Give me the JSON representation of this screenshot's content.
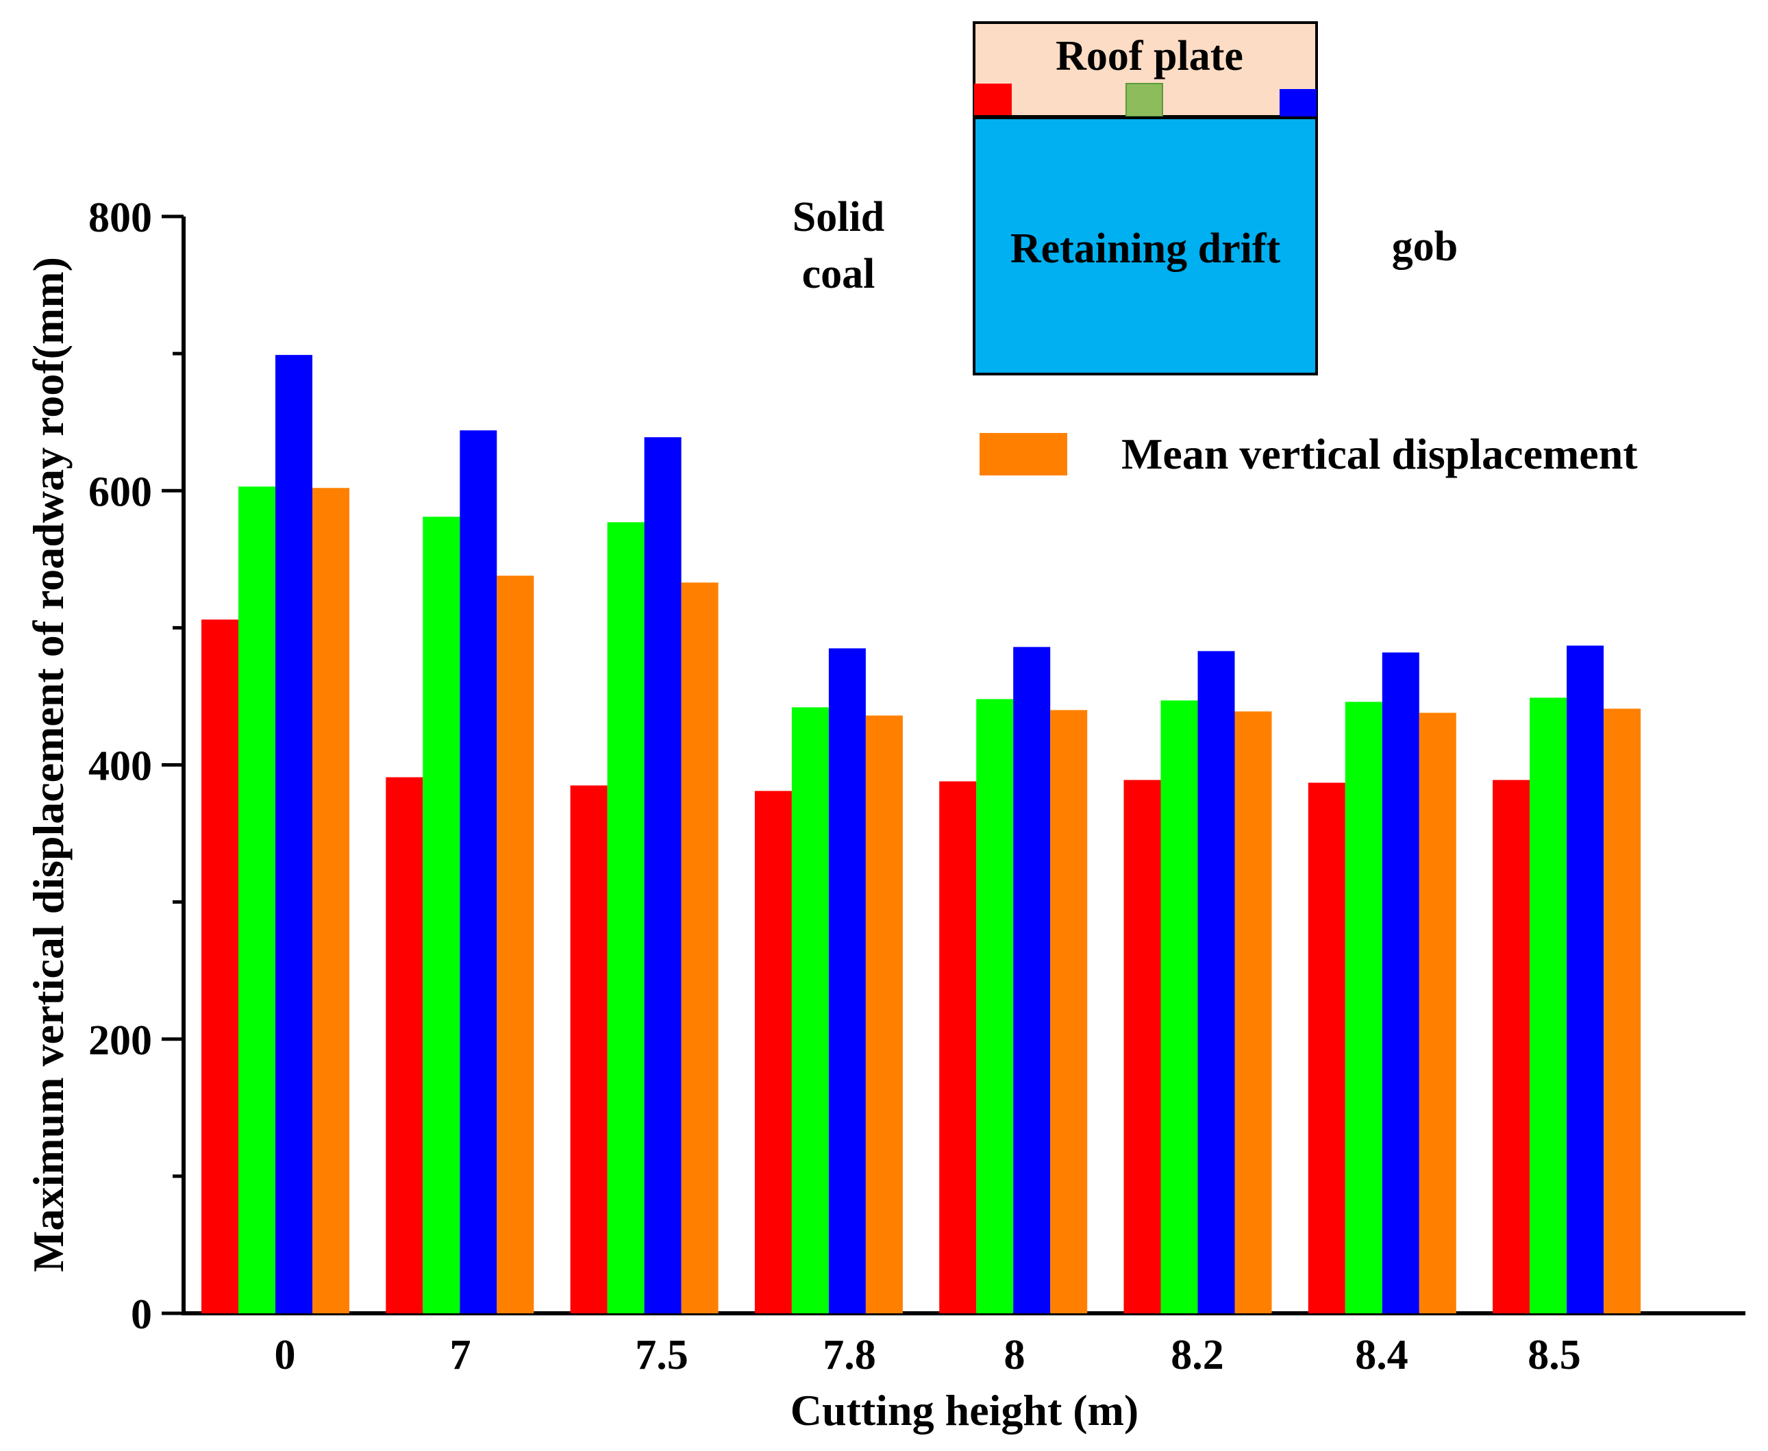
{
  "chart_data": {
    "type": "bar",
    "title": "",
    "xlabel": "Cutting height (m)",
    "ylabel": "Maximum vertical displacement of roadway roof(mm)",
    "categories": [
      "0",
      "7",
      "7.5",
      "7.8",
      "8",
      "8.2",
      "8.4",
      "8.5"
    ],
    "ylim": [
      0,
      800
    ],
    "yticks": [
      "0",
      "200",
      "400",
      "600",
      "800"
    ],
    "grid": false,
    "series": [
      {
        "color": "#ff0000",
        "values": [
          506,
          391,
          385,
          381,
          388,
          389,
          387,
          389
        ]
      },
      {
        "color": "#00ff00",
        "values": [
          603,
          581,
          577,
          442,
          448,
          447,
          446,
          449
        ]
      },
      {
        "color": "#0000ff",
        "values": [
          699,
          644,
          639,
          485,
          486,
          483,
          482,
          487
        ]
      },
      {
        "name": "Mean vertical displacement",
        "color": "#ff8000",
        "values": [
          602,
          538,
          533,
          436,
          440,
          439,
          438,
          441
        ]
      }
    ],
    "legend": {
      "placement": "top-right",
      "label": "Mean vertical displacement"
    }
  },
  "schematic": {
    "roof_label": "Roof plate",
    "drift_label": "Retaining drift",
    "left_label_line1": "Solid",
    "left_label_line2": "coal",
    "right_label": "gob",
    "colors": {
      "roof": "#fcdcc4",
      "drift": "#00b0f0",
      "left_marker": "#ff0000",
      "middle_marker": "#8cbc5c",
      "right_marker": "#0000ff"
    }
  }
}
